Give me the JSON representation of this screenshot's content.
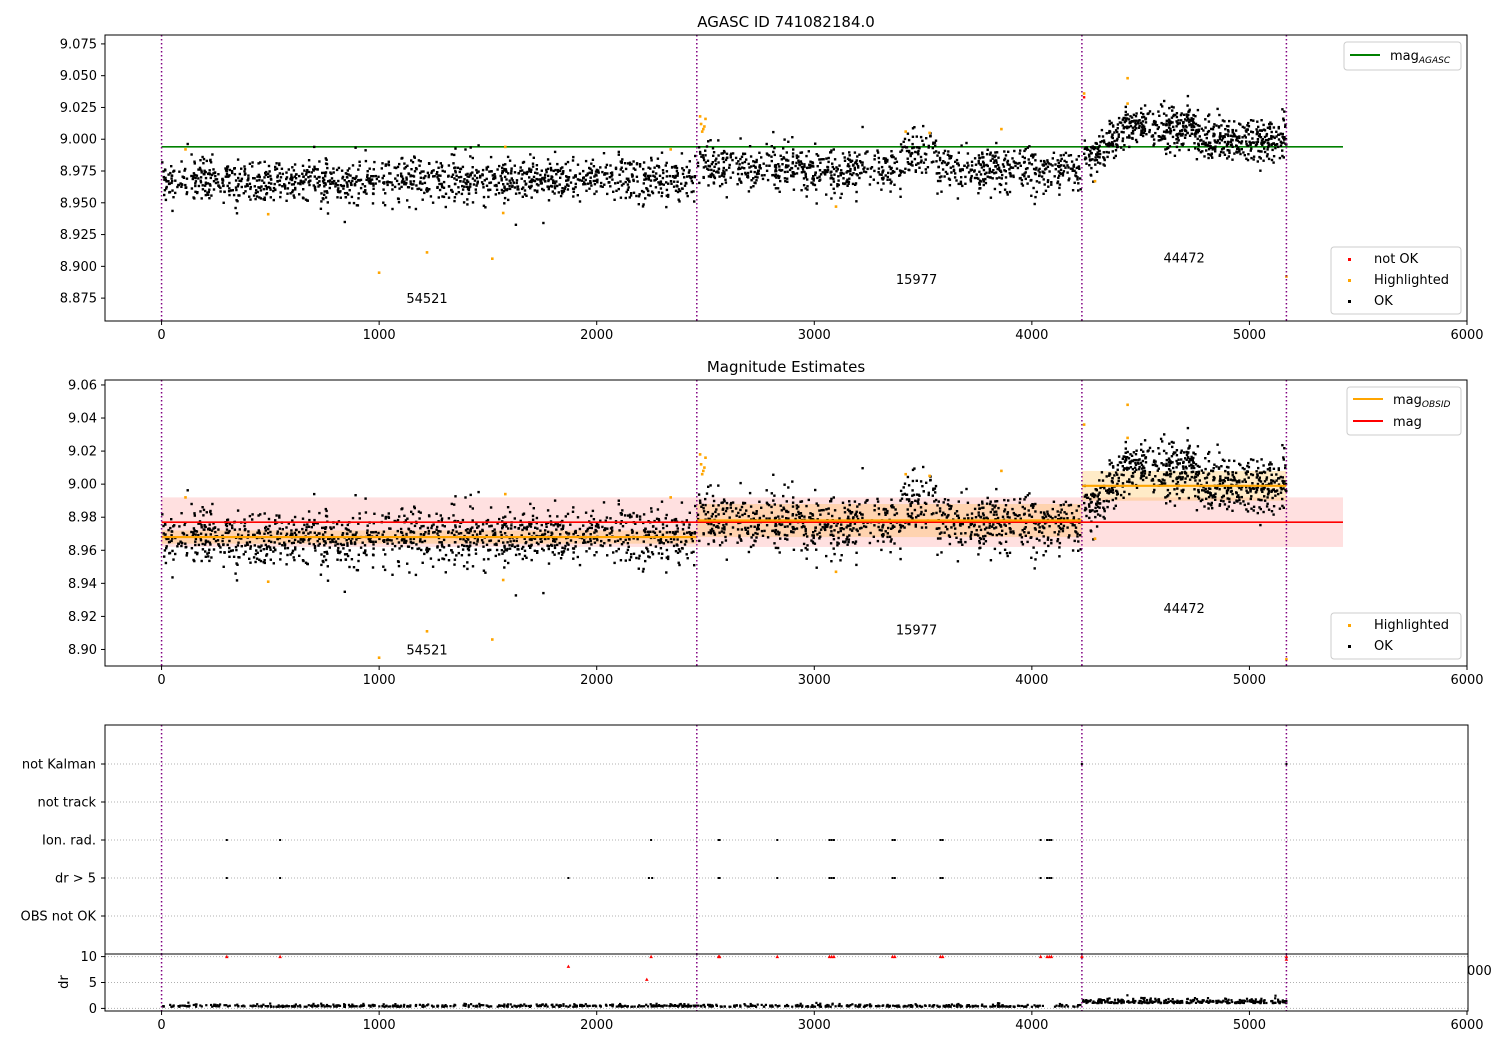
{
  "chart_data": [
    {
      "type": "scatter",
      "title": "AGASC ID 741082184.0",
      "xlim": [
        -260,
        6000
      ],
      "ylim": [
        8.857,
        9.082
      ],
      "x_ticks": [
        0,
        1000,
        2000,
        3000,
        4000,
        5000,
        6000
      ],
      "x_tick_labels": [
        "0",
        "1000",
        "2000",
        "3000",
        "4000",
        "5000",
        "6000"
      ],
      "y_ticks": [
        8.875,
        8.9,
        8.925,
        8.95,
        8.975,
        9.0,
        9.025,
        9.05,
        9.075
      ],
      "y_tick_labels": [
        "8.875",
        "8.900",
        "8.925",
        "8.950",
        "8.975",
        "9.000",
        "9.025",
        "9.050",
        "9.075"
      ],
      "obs_boundaries": [
        0,
        2460,
        4230,
        5170
      ],
      "obs_labels": [
        {
          "x": 1220,
          "y": 8.871,
          "text": "54521"
        },
        {
          "x": 3470,
          "y": 8.886,
          "text": "15977"
        },
        {
          "x": 4700,
          "y": 8.903,
          "text": "44472"
        }
      ],
      "mag_agasc": {
        "value": 8.994,
        "x_range": [
          0,
          5430
        ]
      },
      "series_ok": [
        {
          "x_range": [
            0,
            2455
          ],
          "base": 8.967,
          "end": 8.969,
          "spread": 0.0085,
          "n": 1300
        },
        {
          "x_range": [
            2465,
            4225
          ],
          "base": 8.979,
          "end": 8.976,
          "spread": 0.0085,
          "n": 950
        },
        {
          "x_range": [
            4235,
            5170
          ],
          "base": 8.999,
          "end": 9.0,
          "spread": 0.0085,
          "n": 700
        }
      ],
      "highlighted": [
        [
          110,
          8.992
        ],
        [
          490,
          8.941
        ],
        [
          1000,
          8.895
        ],
        [
          1220,
          8.911
        ],
        [
          1520,
          8.906
        ],
        [
          1570,
          8.942
        ],
        [
          1580,
          8.994
        ],
        [
          2340,
          8.992
        ],
        [
          2475,
          9.018
        ],
        [
          2480,
          9.012
        ],
        [
          2490,
          9.008
        ],
        [
          2485,
          9.006
        ],
        [
          2500,
          9.016
        ],
        [
          2495,
          9.01
        ],
        [
          3100,
          8.947
        ],
        [
          3420,
          9.006
        ],
        [
          3530,
          9.005
        ],
        [
          3860,
          9.008
        ],
        [
          4240,
          9.036
        ],
        [
          4290,
          8.967
        ],
        [
          4440,
          9.048
        ],
        [
          4440,
          9.028
        ],
        [
          5170,
          8.892
        ]
      ],
      "not_ok": [
        [
          4240,
          9.033
        ]
      ],
      "legend_upper": [
        {
          "label": "mag",
          "sub": "AGASC",
          "color": "#008000"
        }
      ],
      "legend_lower": [
        {
          "label": "not OK",
          "color": "#ff0000"
        },
        {
          "label": "Highlighted",
          "color": "#ffa500"
        },
        {
          "label": "OK",
          "color": "#000000"
        }
      ]
    },
    {
      "type": "scatter",
      "title": "Magnitude Estimates",
      "xlim": [
        -260,
        6000
      ],
      "ylim": [
        8.89,
        9.063
      ],
      "x_ticks": [
        0,
        1000,
        2000,
        3000,
        4000,
        5000,
        6000
      ],
      "x_tick_labels": [
        "0",
        "1000",
        "2000",
        "3000",
        "4000",
        "5000",
        "6000"
      ],
      "y_ticks": [
        8.9,
        8.92,
        8.94,
        8.96,
        8.98,
        9.0,
        9.02,
        9.04,
        9.06
      ],
      "y_tick_labels": [
        "8.90",
        "8.92",
        "8.94",
        "8.96",
        "8.98",
        "9.00",
        "9.02",
        "9.04",
        "9.06"
      ],
      "obs_boundaries": [
        0,
        2460,
        4230,
        5170
      ],
      "obs_labels": [
        {
          "x": 1220,
          "y": 8.897,
          "text": "54521"
        },
        {
          "x": 3470,
          "y": 8.909,
          "text": "15977"
        },
        {
          "x": 4700,
          "y": 8.922,
          "text": "44472"
        }
      ],
      "mag": {
        "value": 8.977,
        "band": [
          8.962,
          8.992
        ],
        "x_range": [
          0,
          5430
        ]
      },
      "mag_obsid": [
        {
          "x_range": [
            0,
            2460
          ],
          "value": 8.968,
          "band": [
            8.964,
            8.972
          ]
        },
        {
          "x_range": [
            2460,
            4230
          ],
          "value": 8.978,
          "band": [
            8.968,
            8.988
          ]
        },
        {
          "x_range": [
            4230,
            5170
          ],
          "value": 8.999,
          "band": [
            8.99,
            9.008
          ]
        }
      ],
      "highlighted": [
        [
          110,
          8.992
        ],
        [
          490,
          8.941
        ],
        [
          1000,
          8.895
        ],
        [
          1220,
          8.911
        ],
        [
          1520,
          8.906
        ],
        [
          1570,
          8.942
        ],
        [
          1580,
          8.994
        ],
        [
          2340,
          8.992
        ],
        [
          2475,
          9.018
        ],
        [
          2480,
          9.012
        ],
        [
          2490,
          9.008
        ],
        [
          2485,
          9.006
        ],
        [
          2500,
          9.016
        ],
        [
          2495,
          9.01
        ],
        [
          3100,
          8.947
        ],
        [
          3420,
          9.006
        ],
        [
          3530,
          9.005
        ],
        [
          3860,
          9.008
        ],
        [
          4240,
          9.036
        ],
        [
          4290,
          8.967
        ],
        [
          4440,
          9.048
        ],
        [
          4440,
          9.028
        ],
        [
          5170,
          8.894
        ]
      ],
      "legend_upper": [
        {
          "label": "mag",
          "sub": "OBSID",
          "color": "#ffa500"
        },
        {
          "label": "mag",
          "color": "#ff0000"
        }
      ],
      "legend_lower": [
        {
          "label": "Highlighted",
          "color": "#ffa500"
        },
        {
          "label": "OK",
          "color": "#000000"
        }
      ]
    },
    {
      "type": "scatter",
      "xlim": [
        -260,
        6000
      ],
      "categories": [
        "OBS not OK",
        "dr > 5",
        "Ion. rad.",
        "not track",
        "not Kalman"
      ],
      "obs_boundaries": [
        0,
        2460,
        4230,
        5170
      ],
      "flags": {
        "Ion. rad.": [
          300,
          545,
          2250,
          2560,
          2565,
          2830,
          3070,
          3080,
          3090,
          3360,
          3370,
          3580,
          3590,
          4040,
          4070,
          4080,
          4090
        ],
        "dr > 5": [
          300,
          545,
          1870,
          2240,
          2255,
          2560,
          2565,
          2830,
          3070,
          3080,
          3090,
          3360,
          3370,
          3580,
          3590,
          4040,
          4070,
          4080,
          4090
        ],
        "not Kalman": [
          4230,
          5170
        ]
      }
    },
    {
      "type": "scatter",
      "xlim": [
        -260,
        6000
      ],
      "ylim": [
        -0.5,
        10.5
      ],
      "ylabel": "dr",
      "y_ticks": [
        0,
        5,
        10
      ],
      "y_tick_labels": [
        "0",
        "5",
        "10"
      ],
      "x_ticks": [
        0,
        1000,
        2000,
        3000,
        4000,
        5000,
        6000
      ],
      "x_tick_labels": [
        "0",
        "1000",
        "2000",
        "3000",
        "4000",
        "5000",
        "6000"
      ],
      "right_overflow_tick": "000",
      "obs_boundaries": [
        0,
        2460,
        4230,
        5170
      ],
      "red_points": [
        [
          300,
          10
        ],
        [
          545,
          10
        ],
        [
          1870,
          8.1
        ],
        [
          2230,
          5.6
        ],
        [
          2250,
          10
        ],
        [
          2560,
          10
        ],
        [
          2565,
          10
        ],
        [
          2830,
          10
        ],
        [
          3070,
          10
        ],
        [
          3080,
          10
        ],
        [
          3090,
          10
        ],
        [
          3360,
          10
        ],
        [
          3370,
          10
        ],
        [
          3580,
          10
        ],
        [
          3590,
          10
        ],
        [
          4040,
          10
        ],
        [
          4070,
          10
        ],
        [
          4080,
          10
        ],
        [
          4090,
          10
        ],
        [
          4230,
          10
        ],
        [
          5170,
          10
        ],
        [
          5170,
          9.5
        ]
      ],
      "baseline_segments": [
        {
          "x_range": [
            0,
            4225
          ],
          "base": 0.3,
          "spread": 0.25,
          "n": 700
        },
        {
          "x_range": [
            4235,
            5170
          ],
          "base": 1.0,
          "spread": 0.45,
          "n": 300
        }
      ]
    }
  ]
}
